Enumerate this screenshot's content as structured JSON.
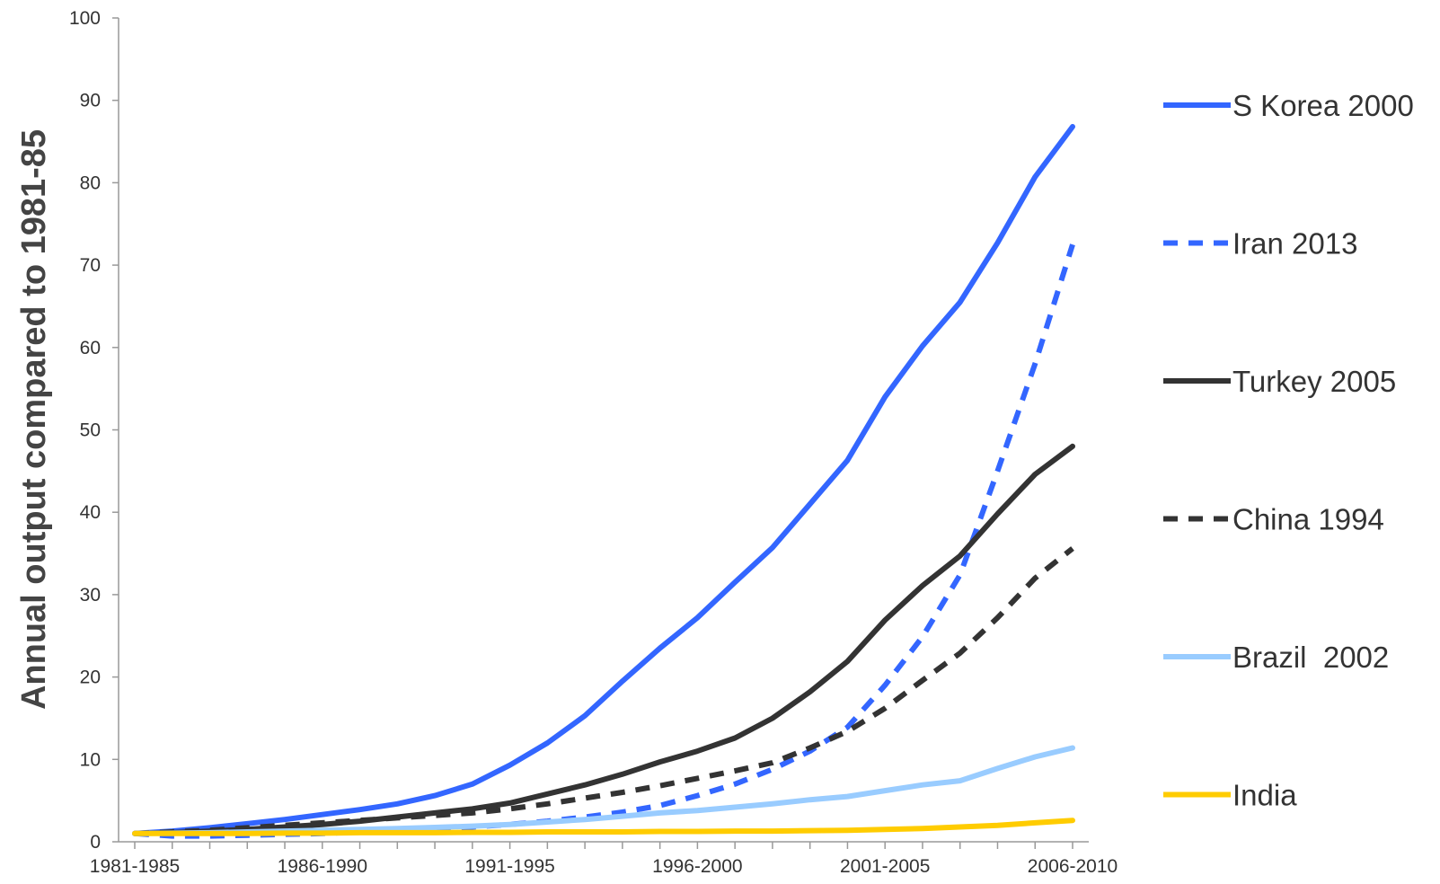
{
  "chart_data": {
    "type": "line",
    "ylabel": "Annual output compared to 1981-85",
    "xlabel": "",
    "ylim": [
      0,
      100
    ],
    "ytick_step": 10,
    "xlim": [
      0,
      25
    ],
    "xtick_labels": [
      {
        "x": 0,
        "label": "1981-1985"
      },
      {
        "x": 5,
        "label": "1986-1990"
      },
      {
        "x": 10,
        "label": "1991-1995"
      },
      {
        "x": 15,
        "label": "1996-2000"
      },
      {
        "x": 20,
        "label": "2001-2005"
      },
      {
        "x": 25,
        "label": "2006-2010"
      }
    ],
    "grid": false,
    "legend_position": "right",
    "x": [
      0,
      1,
      2,
      3,
      4,
      5,
      6,
      7,
      8,
      9,
      10,
      11,
      12,
      13,
      14,
      15,
      16,
      17,
      18,
      19,
      20,
      21,
      22,
      23,
      24,
      25
    ],
    "series": [
      {
        "name": "S Korea 2000",
        "color": "#3366ff",
        "dash": false,
        "values": [
          1.0,
          1.3,
          1.7,
          2.2,
          2.7,
          3.3,
          3.9,
          4.6,
          5.6,
          7.0,
          9.3,
          12.0,
          15.3,
          19.5,
          23.5,
          27.2,
          31.5,
          35.7,
          41.0,
          46.3,
          54.0,
          60.2,
          65.5,
          72.7,
          80.7,
          86.8
        ]
      },
      {
        "name": "Iran 2013",
        "color": "#3366ff",
        "dash": true,
        "values": [
          1.0,
          0.7,
          0.7,
          0.8,
          0.9,
          1.0,
          1.2,
          1.4,
          1.6,
          1.8,
          2.1,
          2.5,
          3.0,
          3.6,
          4.4,
          5.6,
          7.0,
          8.8,
          11.0,
          13.9,
          19.0,
          24.9,
          32.4,
          45.0,
          58.0,
          72.5
        ]
      },
      {
        "name": "Turkey 2005",
        "color": "#333333",
        "dash": false,
        "values": [
          1.0,
          1.1,
          1.3,
          1.5,
          1.8,
          2.1,
          2.5,
          3.0,
          3.5,
          4.0,
          4.7,
          5.8,
          6.9,
          8.2,
          9.7,
          11.0,
          12.6,
          15.0,
          18.2,
          21.9,
          26.9,
          31.1,
          34.7,
          39.8,
          44.6,
          48.0
        ]
      },
      {
        "name": "China 1994",
        "color": "#333333",
        "dash": true,
        "values": [
          1.0,
          1.2,
          1.4,
          1.7,
          2.0,
          2.3,
          2.6,
          2.9,
          3.2,
          3.5,
          4.0,
          4.6,
          5.3,
          6.0,
          6.8,
          7.7,
          8.6,
          9.6,
          11.4,
          13.4,
          16.2,
          19.6,
          22.9,
          27.2,
          32.0,
          35.6
        ]
      },
      {
        "name": "Brazil  2002",
        "color": "#99ccff",
        "dash": false,
        "values": [
          1.0,
          1.05,
          1.1,
          1.2,
          1.3,
          1.4,
          1.5,
          1.6,
          1.75,
          1.9,
          2.1,
          2.4,
          2.7,
          3.1,
          3.5,
          3.8,
          4.2,
          4.6,
          5.1,
          5.5,
          6.2,
          6.9,
          7.4,
          8.9,
          10.3,
          11.4
        ]
      },
      {
        "name": "India",
        "color": "#ffcc00",
        "dash": false,
        "values": [
          1.0,
          1.0,
          1.0,
          1.0,
          1.05,
          1.05,
          1.1,
          1.1,
          1.1,
          1.15,
          1.15,
          1.2,
          1.2,
          1.2,
          1.25,
          1.25,
          1.3,
          1.3,
          1.35,
          1.4,
          1.5,
          1.6,
          1.8,
          2.0,
          2.3,
          2.6
        ]
      }
    ]
  }
}
